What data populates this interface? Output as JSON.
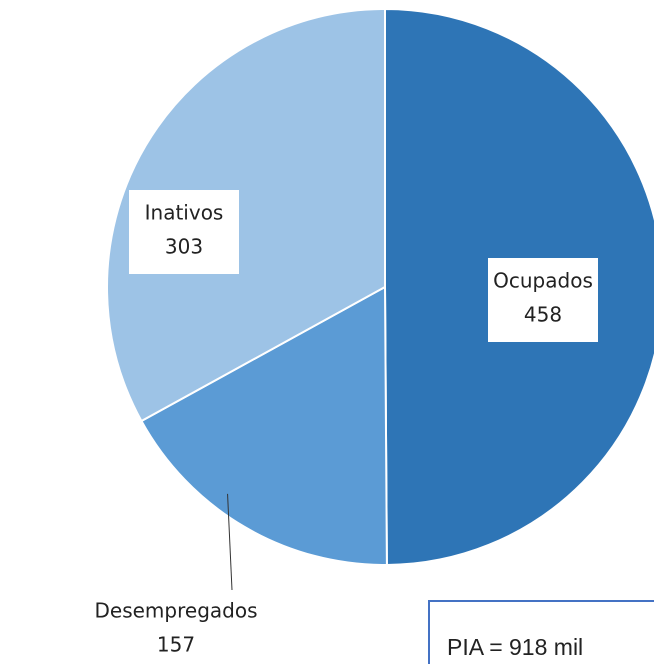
{
  "chart_data": {
    "type": "pie",
    "categories": [
      "Ocupados",
      "Desempregados",
      "Inativos"
    ],
    "values": [
      458,
      157,
      303
    ],
    "colors": [
      "#2e75b6",
      "#5b9bd5",
      "#9dc3e6"
    ],
    "annotation": "PIA  = 918 mil"
  }
}
